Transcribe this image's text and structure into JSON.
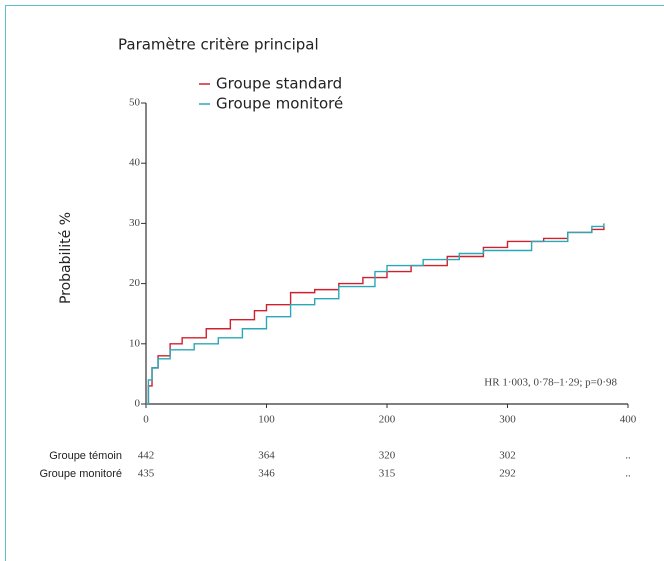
{
  "chart_data": {
    "type": "step",
    "title": "Paramètre critère principal",
    "ylabel": "Probabilité %",
    "annotation": "HR 1·003, 0·78–1·29; p=0·98",
    "xlim": [
      0,
      400
    ],
    "xticks": [
      0,
      100,
      200,
      300,
      400
    ],
    "ylim": [
      0,
      50
    ],
    "yticks": [
      0,
      10,
      20,
      30,
      40,
      50
    ],
    "series": [
      {
        "name": "Groupe standard",
        "color": "#d0202e",
        "x": [
          0,
          2,
          5,
          10,
          20,
          30,
          50,
          70,
          90,
          100,
          120,
          140,
          160,
          180,
          200,
          220,
          250,
          280,
          300,
          330,
          350,
          370,
          380
        ],
        "values": [
          0,
          3,
          6,
          8,
          10,
          11,
          12.5,
          14,
          15.5,
          16.5,
          18.5,
          19,
          20,
          21,
          22,
          23,
          24.5,
          26,
          27,
          27.5,
          28.5,
          29,
          29.5
        ]
      },
      {
        "name": "Groupe monitoré",
        "color": "#2aa8b8",
        "x": [
          0,
          2,
          5,
          10,
          20,
          40,
          60,
          80,
          100,
          120,
          140,
          160,
          190,
          200,
          230,
          260,
          280,
          300,
          320,
          350,
          370,
          380
        ],
        "values": [
          0,
          4,
          6,
          7.5,
          9,
          10,
          11,
          12.5,
          14.5,
          16.5,
          17.5,
          19.5,
          22,
          23,
          24,
          25,
          25.5,
          25.5,
          27,
          28.5,
          29.5,
          30
        ]
      }
    ],
    "risk_table": {
      "rows": [
        {
          "label": "Groupe témoin",
          "values": [
            "442",
            "364",
            "320",
            "302",
            ".."
          ]
        },
        {
          "label": "Groupe monitoré",
          "values": [
            "435",
            "346",
            "315",
            "292",
            ".."
          ]
        }
      ]
    }
  }
}
